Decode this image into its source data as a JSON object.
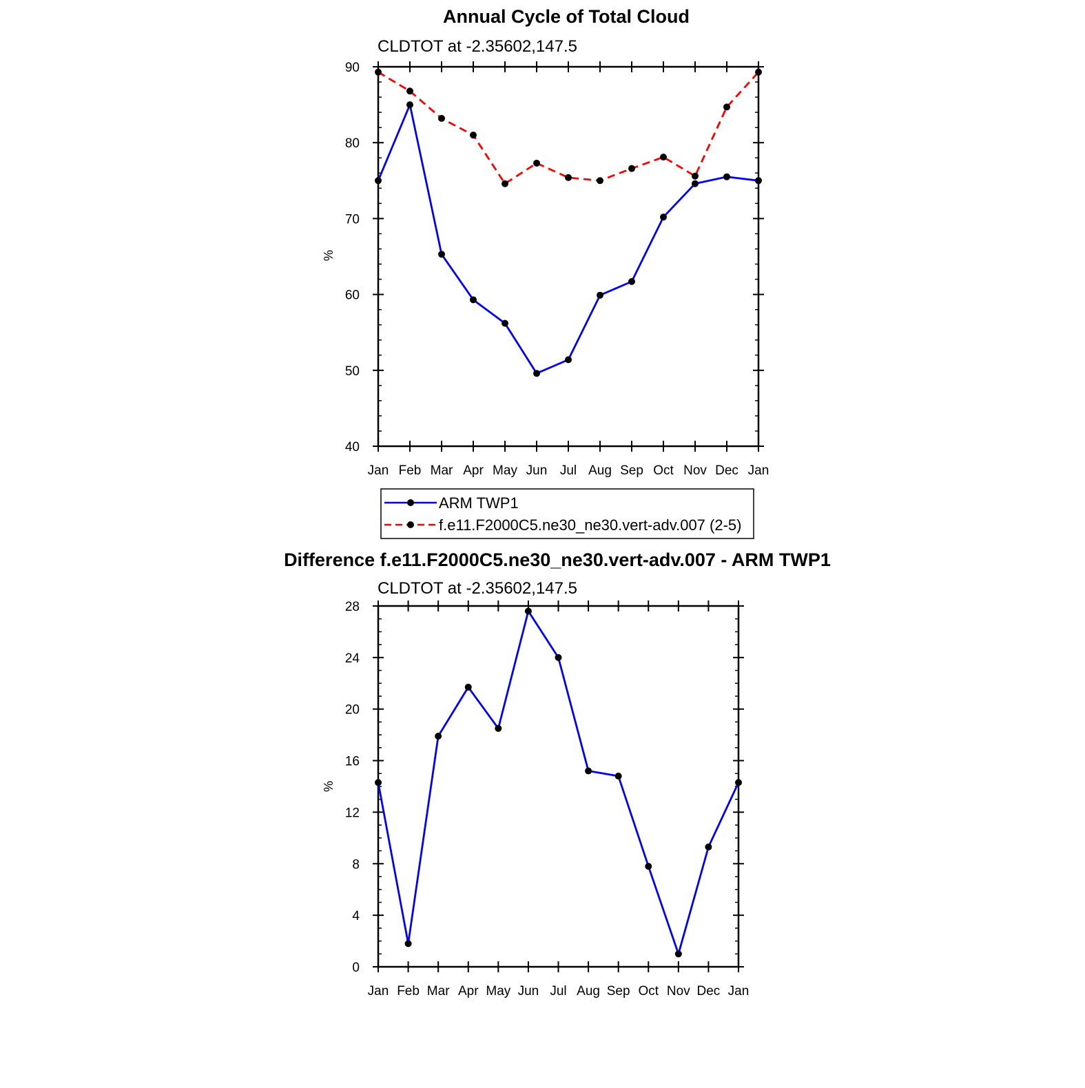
{
  "chart_data": [
    {
      "type": "line",
      "title": "Annual Cycle of Total Cloud",
      "subtitle": "CLDTOT at -2.35602,147.5",
      "xlabel": "",
      "ylabel": "%",
      "categories": [
        "Jan",
        "Feb",
        "Mar",
        "Apr",
        "May",
        "Jun",
        "Jul",
        "Aug",
        "Sep",
        "Oct",
        "Nov",
        "Dec",
        "Jan"
      ],
      "ylim": [
        40,
        90
      ],
      "yticks": [
        40,
        50,
        60,
        70,
        80,
        90
      ],
      "series": [
        {
          "name": "ARM TWP1",
          "color": "#0000ff",
          "dash": "solid",
          "values": [
            75.0,
            85.0,
            65.3,
            59.3,
            56.2,
            49.6,
            51.4,
            59.9,
            61.7,
            70.2,
            74.6,
            75.5,
            75.0
          ]
        },
        {
          "name": "f.e11.F2000C5.ne30_ne30.vert-adv.007 (2-5)",
          "color": "#ff0000",
          "dash": "dashed",
          "values": [
            89.3,
            86.8,
            83.2,
            81.0,
            74.6,
            77.3,
            75.4,
            75.0,
            76.6,
            78.1,
            75.6,
            84.7,
            89.3
          ]
        }
      ],
      "legend": "below"
    },
    {
      "type": "line",
      "title": "Difference f.e11.F2000C5.ne30_ne30.vert-adv.007 - ARM TWP1",
      "subtitle": "CLDTOT at -2.35602,147.5",
      "xlabel": "",
      "ylabel": "%",
      "categories": [
        "Jan",
        "Feb",
        "Mar",
        "Apr",
        "May",
        "Jun",
        "Jul",
        "Aug",
        "Sep",
        "Oct",
        "Nov",
        "Dec",
        "Jan"
      ],
      "ylim": [
        0,
        28
      ],
      "yticks": [
        0,
        4,
        8,
        12,
        16,
        20,
        24,
        28
      ],
      "series": [
        {
          "name": "Difference",
          "color": "#0000ff",
          "dash": "solid",
          "values": [
            14.3,
            1.8,
            17.9,
            21.7,
            18.5,
            27.6,
            24.0,
            15.2,
            14.8,
            7.8,
            1.0,
            9.3,
            14.3
          ]
        }
      ]
    }
  ]
}
